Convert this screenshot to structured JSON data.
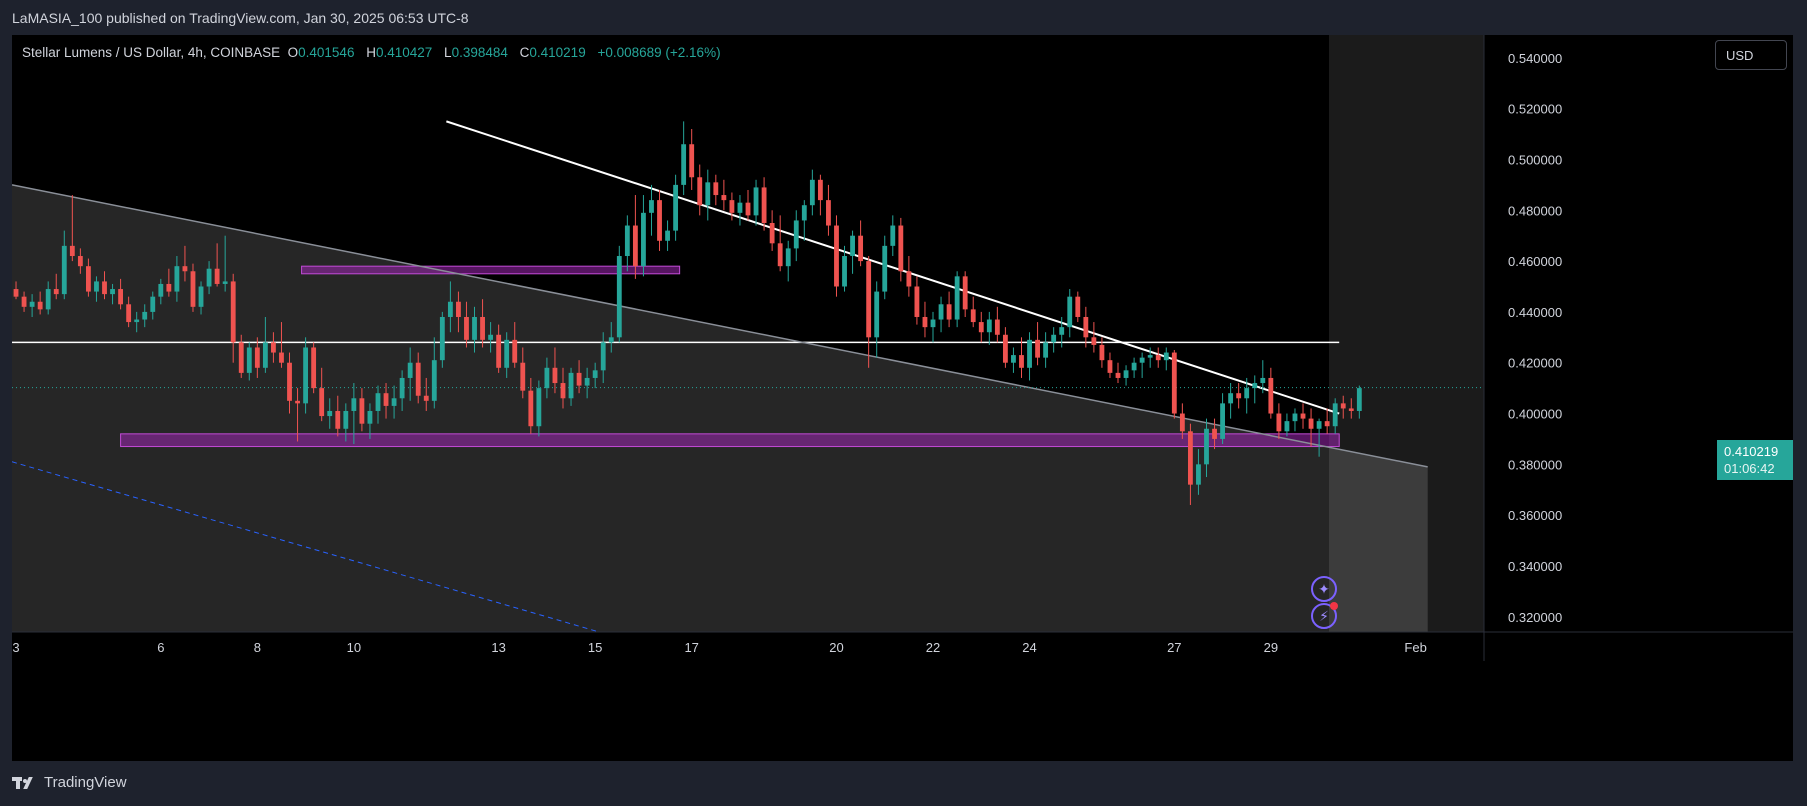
{
  "header": {
    "publisher_line": "LaMASIA_100 published on TradingView.com, Jan 30, 2025 06:53 UTC-8"
  },
  "legend": {
    "symbol": "Stellar Lumens / US Dollar, 4h, COINBASE",
    "open_key": "O",
    "open": "0.401546",
    "high_key": "H",
    "high": "0.410427",
    "low_key": "L",
    "low": "0.398484",
    "close_key": "C",
    "close": "0.410219",
    "change": "+0.008689 (+2.16%)"
  },
  "currency_button": "USD",
  "price_tag": {
    "price": "0.410219",
    "countdown": "01:06:42"
  },
  "footer": {
    "brand": "TradingView"
  },
  "icons": {
    "tool_one": "sparkle-icon",
    "tool_two": "lightning-alert-icon"
  },
  "colors": {
    "up": "#26a69a",
    "down": "#ef5350",
    "zone": "#9c27b0",
    "trend": "#ffffff",
    "dashed": "#2962ff"
  },
  "chart_data": {
    "type": "candlestick",
    "timeframe": "4h",
    "y_ticks": [
      "0.540000",
      "0.520000",
      "0.500000",
      "0.480000",
      "0.460000",
      "0.440000",
      "0.420000",
      "0.400000",
      "0.380000",
      "0.360000",
      "0.340000",
      "0.320000"
    ],
    "ylim": [
      0.314,
      0.549
    ],
    "x_ticks": [
      {
        "label": "3",
        "index": 0
      },
      {
        "label": "6",
        "index": 18
      },
      {
        "label": "8",
        "index": 30
      },
      {
        "label": "10",
        "index": 42
      },
      {
        "label": "13",
        "index": 60
      },
      {
        "label": "15",
        "index": 72
      },
      {
        "label": "17",
        "index": 84
      },
      {
        "label": "20",
        "index": 102
      },
      {
        "label": "22",
        "index": 114
      },
      {
        "label": "24",
        "index": 126
      },
      {
        "label": "27",
        "index": 144
      },
      {
        "label": "29",
        "index": 156
      },
      {
        "label": "Feb",
        "index": 174
      }
    ],
    "x_range": [
      -0.5,
      182.5
    ],
    "last_index": 164,
    "candles": [
      [
        0.449,
        0.452,
        0.445,
        0.446
      ],
      [
        0.446,
        0.448,
        0.44,
        0.442
      ],
      [
        0.442,
        0.447,
        0.438,
        0.444
      ],
      [
        0.444,
        0.448,
        0.439,
        0.441
      ],
      [
        0.441,
        0.452,
        0.439,
        0.449
      ],
      [
        0.449,
        0.455,
        0.445,
        0.447
      ],
      [
        0.447,
        0.472,
        0.445,
        0.466
      ],
      [
        0.466,
        0.486,
        0.46,
        0.462
      ],
      [
        0.462,
        0.465,
        0.455,
        0.458
      ],
      [
        0.458,
        0.461,
        0.446,
        0.448
      ],
      [
        0.448,
        0.454,
        0.444,
        0.452
      ],
      [
        0.452,
        0.456,
        0.445,
        0.447
      ],
      [
        0.447,
        0.451,
        0.443,
        0.449
      ],
      [
        0.449,
        0.453,
        0.441,
        0.443
      ],
      [
        0.443,
        0.446,
        0.434,
        0.436
      ],
      [
        0.436,
        0.44,
        0.432,
        0.437
      ],
      [
        0.437,
        0.443,
        0.434,
        0.44
      ],
      [
        0.44,
        0.448,
        0.437,
        0.446
      ],
      [
        0.446,
        0.453,
        0.443,
        0.451
      ],
      [
        0.451,
        0.457,
        0.446,
        0.448
      ],
      [
        0.448,
        0.462,
        0.444,
        0.458
      ],
      [
        0.458,
        0.466,
        0.452,
        0.456
      ],
      [
        0.456,
        0.459,
        0.44,
        0.442
      ],
      [
        0.442,
        0.452,
        0.439,
        0.45
      ],
      [
        0.45,
        0.46,
        0.447,
        0.457
      ],
      [
        0.457,
        0.467,
        0.45,
        0.451
      ],
      [
        0.451,
        0.47,
        0.448,
        0.452
      ],
      [
        0.452,
        0.455,
        0.42,
        0.428
      ],
      [
        0.428,
        0.431,
        0.414,
        0.416
      ],
      [
        0.416,
        0.428,
        0.413,
        0.426
      ],
      [
        0.426,
        0.43,
        0.414,
        0.418
      ],
      [
        0.418,
        0.438,
        0.416,
        0.428
      ],
      [
        0.428,
        0.432,
        0.42,
        0.424
      ],
      [
        0.424,
        0.436,
        0.418,
        0.42
      ],
      [
        0.42,
        0.424,
        0.4,
        0.405
      ],
      [
        0.405,
        0.41,
        0.389,
        0.404
      ],
      [
        0.404,
        0.43,
        0.4,
        0.426
      ],
      [
        0.426,
        0.428,
        0.408,
        0.41
      ],
      [
        0.41,
        0.418,
        0.397,
        0.399
      ],
      [
        0.399,
        0.406,
        0.394,
        0.401
      ],
      [
        0.401,
        0.407,
        0.391,
        0.394
      ],
      [
        0.394,
        0.404,
        0.389,
        0.401
      ],
      [
        0.401,
        0.412,
        0.388,
        0.406
      ],
      [
        0.406,
        0.41,
        0.393,
        0.396
      ],
      [
        0.396,
        0.404,
        0.39,
        0.401
      ],
      [
        0.401,
        0.411,
        0.396,
        0.408
      ],
      [
        0.408,
        0.412,
        0.398,
        0.403
      ],
      [
        0.403,
        0.411,
        0.398,
        0.406
      ],
      [
        0.406,
        0.417,
        0.401,
        0.414
      ],
      [
        0.414,
        0.426,
        0.405,
        0.42
      ],
      [
        0.42,
        0.424,
        0.404,
        0.407
      ],
      [
        0.407,
        0.414,
        0.401,
        0.405
      ],
      [
        0.405,
        0.43,
        0.402,
        0.421
      ],
      [
        0.421,
        0.44,
        0.418,
        0.438
      ],
      [
        0.438,
        0.452,
        0.432,
        0.444
      ],
      [
        0.444,
        0.448,
        0.432,
        0.438
      ],
      [
        0.438,
        0.444,
        0.426,
        0.429
      ],
      [
        0.429,
        0.442,
        0.424,
        0.438
      ],
      [
        0.438,
        0.445,
        0.426,
        0.429
      ],
      [
        0.429,
        0.436,
        0.424,
        0.431
      ],
      [
        0.431,
        0.435,
        0.416,
        0.418
      ],
      [
        0.418,
        0.432,
        0.414,
        0.429
      ],
      [
        0.429,
        0.436,
        0.418,
        0.42
      ],
      [
        0.42,
        0.426,
        0.406,
        0.409
      ],
      [
        0.409,
        0.414,
        0.392,
        0.395
      ],
      [
        0.395,
        0.413,
        0.391,
        0.41
      ],
      [
        0.41,
        0.422,
        0.406,
        0.418
      ],
      [
        0.418,
        0.426,
        0.408,
        0.412
      ],
      [
        0.412,
        0.418,
        0.402,
        0.406
      ],
      [
        0.406,
        0.418,
        0.403,
        0.416
      ],
      [
        0.416,
        0.421,
        0.408,
        0.411
      ],
      [
        0.411,
        0.418,
        0.406,
        0.414
      ],
      [
        0.414,
        0.42,
        0.41,
        0.417
      ],
      [
        0.417,
        0.432,
        0.412,
        0.428
      ],
      [
        0.428,
        0.436,
        0.424,
        0.43
      ],
      [
        0.43,
        0.466,
        0.428,
        0.462
      ],
      [
        0.462,
        0.478,
        0.456,
        0.474
      ],
      [
        0.474,
        0.486,
        0.453,
        0.458
      ],
      [
        0.458,
        0.486,
        0.454,
        0.479
      ],
      [
        0.479,
        0.49,
        0.47,
        0.484
      ],
      [
        0.484,
        0.488,
        0.464,
        0.468
      ],
      [
        0.468,
        0.476,
        0.464,
        0.472
      ],
      [
        0.472,
        0.494,
        0.468,
        0.49
      ],
      [
        0.49,
        0.515,
        0.486,
        0.506
      ],
      [
        0.506,
        0.512,
        0.488,
        0.493
      ],
      [
        0.493,
        0.498,
        0.478,
        0.482
      ],
      [
        0.482,
        0.496,
        0.476,
        0.491
      ],
      [
        0.491,
        0.494,
        0.482,
        0.486
      ],
      [
        0.486,
        0.492,
        0.48,
        0.484
      ],
      [
        0.484,
        0.487,
        0.476,
        0.479
      ],
      [
        0.479,
        0.486,
        0.474,
        0.483
      ],
      [
        0.483,
        0.488,
        0.476,
        0.478
      ],
      [
        0.478,
        0.492,
        0.474,
        0.489
      ],
      [
        0.489,
        0.493,
        0.472,
        0.475
      ],
      [
        0.475,
        0.48,
        0.464,
        0.467
      ],
      [
        0.467,
        0.478,
        0.456,
        0.458
      ],
      [
        0.458,
        0.468,
        0.452,
        0.465
      ],
      [
        0.465,
        0.48,
        0.46,
        0.476
      ],
      [
        0.476,
        0.484,
        0.468,
        0.482
      ],
      [
        0.482,
        0.496,
        0.478,
        0.492
      ],
      [
        0.492,
        0.494,
        0.478,
        0.484
      ],
      [
        0.484,
        0.49,
        0.47,
        0.474
      ],
      [
        0.474,
        0.478,
        0.446,
        0.45
      ],
      [
        0.45,
        0.466,
        0.448,
        0.462
      ],
      [
        0.462,
        0.472,
        0.455,
        0.47
      ],
      [
        0.47,
        0.476,
        0.458,
        0.46
      ],
      [
        0.46,
        0.462,
        0.418,
        0.43
      ],
      [
        0.43,
        0.452,
        0.422,
        0.448
      ],
      [
        0.448,
        0.47,
        0.445,
        0.466
      ],
      [
        0.466,
        0.478,
        0.462,
        0.474
      ],
      [
        0.474,
        0.477,
        0.452,
        0.456
      ],
      [
        0.456,
        0.462,
        0.446,
        0.45
      ],
      [
        0.45,
        0.454,
        0.435,
        0.438
      ],
      [
        0.438,
        0.444,
        0.43,
        0.434
      ],
      [
        0.434,
        0.44,
        0.428,
        0.437
      ],
      [
        0.437,
        0.446,
        0.432,
        0.443
      ],
      [
        0.443,
        0.448,
        0.434,
        0.437
      ],
      [
        0.437,
        0.456,
        0.434,
        0.454
      ],
      [
        0.454,
        0.456,
        0.438,
        0.441
      ],
      [
        0.441,
        0.446,
        0.434,
        0.436
      ],
      [
        0.436,
        0.44,
        0.428,
        0.432
      ],
      [
        0.432,
        0.44,
        0.427,
        0.437
      ],
      [
        0.437,
        0.442,
        0.428,
        0.431
      ],
      [
        0.431,
        0.434,
        0.418,
        0.42
      ],
      [
        0.42,
        0.426,
        0.416,
        0.423
      ],
      [
        0.423,
        0.43,
        0.414,
        0.418
      ],
      [
        0.418,
        0.432,
        0.413,
        0.429
      ],
      [
        0.429,
        0.436,
        0.419,
        0.422
      ],
      [
        0.422,
        0.432,
        0.418,
        0.428
      ],
      [
        0.428,
        0.434,
        0.424,
        0.431
      ],
      [
        0.431,
        0.438,
        0.426,
        0.434
      ],
      [
        0.434,
        0.449,
        0.43,
        0.446
      ],
      [
        0.446,
        0.448,
        0.436,
        0.438
      ],
      [
        0.438,
        0.442,
        0.426,
        0.43
      ],
      [
        0.43,
        0.436,
        0.424,
        0.427
      ],
      [
        0.427,
        0.43,
        0.418,
        0.421
      ],
      [
        0.421,
        0.424,
        0.414,
        0.416
      ],
      [
        0.416,
        0.42,
        0.412,
        0.414
      ],
      [
        0.414,
        0.419,
        0.411,
        0.417
      ],
      [
        0.417,
        0.422,
        0.414,
        0.42
      ],
      [
        0.42,
        0.424,
        0.414,
        0.422
      ],
      [
        0.422,
        0.426,
        0.418,
        0.423
      ],
      [
        0.423,
        0.426,
        0.418,
        0.421
      ],
      [
        0.421,
        0.426,
        0.417,
        0.424
      ],
      [
        0.424,
        0.425,
        0.398,
        0.4
      ],
      [
        0.4,
        0.404,
        0.39,
        0.393
      ],
      [
        0.393,
        0.396,
        0.364,
        0.372
      ],
      [
        0.372,
        0.386,
        0.368,
        0.38
      ],
      [
        0.38,
        0.398,
        0.375,
        0.394
      ],
      [
        0.394,
        0.398,
        0.386,
        0.39
      ],
      [
        0.39,
        0.408,
        0.388,
        0.404
      ],
      [
        0.404,
        0.412,
        0.398,
        0.408
      ],
      [
        0.408,
        0.412,
        0.402,
        0.406
      ],
      [
        0.406,
        0.414,
        0.4,
        0.41
      ],
      [
        0.41,
        0.415,
        0.404,
        0.412
      ],
      [
        0.412,
        0.421,
        0.408,
        0.414
      ],
      [
        0.414,
        0.418,
        0.398,
        0.4
      ],
      [
        0.4,
        0.404,
        0.39,
        0.393
      ],
      [
        0.393,
        0.4,
        0.391,
        0.397
      ],
      [
        0.397,
        0.402,
        0.393,
        0.4
      ],
      [
        0.4,
        0.404,
        0.394,
        0.398
      ],
      [
        0.398,
        0.402,
        0.387,
        0.394
      ],
      [
        0.394,
        0.398,
        0.383,
        0.397
      ],
      [
        0.397,
        0.402,
        0.392,
        0.395
      ],
      [
        0.395,
        0.406,
        0.392,
        0.404
      ],
      [
        0.404,
        0.407,
        0.398,
        0.402
      ],
      [
        0.402,
        0.406,
        0.398,
        0.401
      ],
      [
        0.401,
        0.411,
        0.398,
        0.41
      ]
    ],
    "zones": [
      {
        "name": "upper-resistance-zone",
        "x1": 35.5,
        "x2": 82.5,
        "top": 0.458,
        "bottom": 0.455
      },
      {
        "name": "lower-support-zone",
        "x1": 13.0,
        "x2": 164.5,
        "top": 0.392,
        "bottom": 0.387
      }
    ],
    "lines": [
      {
        "name": "descending-trendline",
        "x1": 53.5,
        "y1": 0.515,
        "x2": 164.5,
        "y2": 0.4,
        "dashed": false,
        "width": 2
      },
      {
        "name": "horizontal-level",
        "x1": -0.5,
        "y1": 0.428,
        "x2": 164.5,
        "y2": 0.428,
        "dashed": false,
        "width": 1.5
      },
      {
        "name": "channel-upper-line",
        "x1": -0.5,
        "y1": 0.49,
        "x2": 175.5,
        "y2": 0.379,
        "dashed": false,
        "width": 1.5
      },
      {
        "name": "channel-lower-dashed-line",
        "x1": -0.5,
        "y1": 0.381,
        "x2": 72.5,
        "y2": 0.314,
        "dashed": true,
        "width": 1
      }
    ],
    "channel_fill": true,
    "current_price": 0.410219
  }
}
